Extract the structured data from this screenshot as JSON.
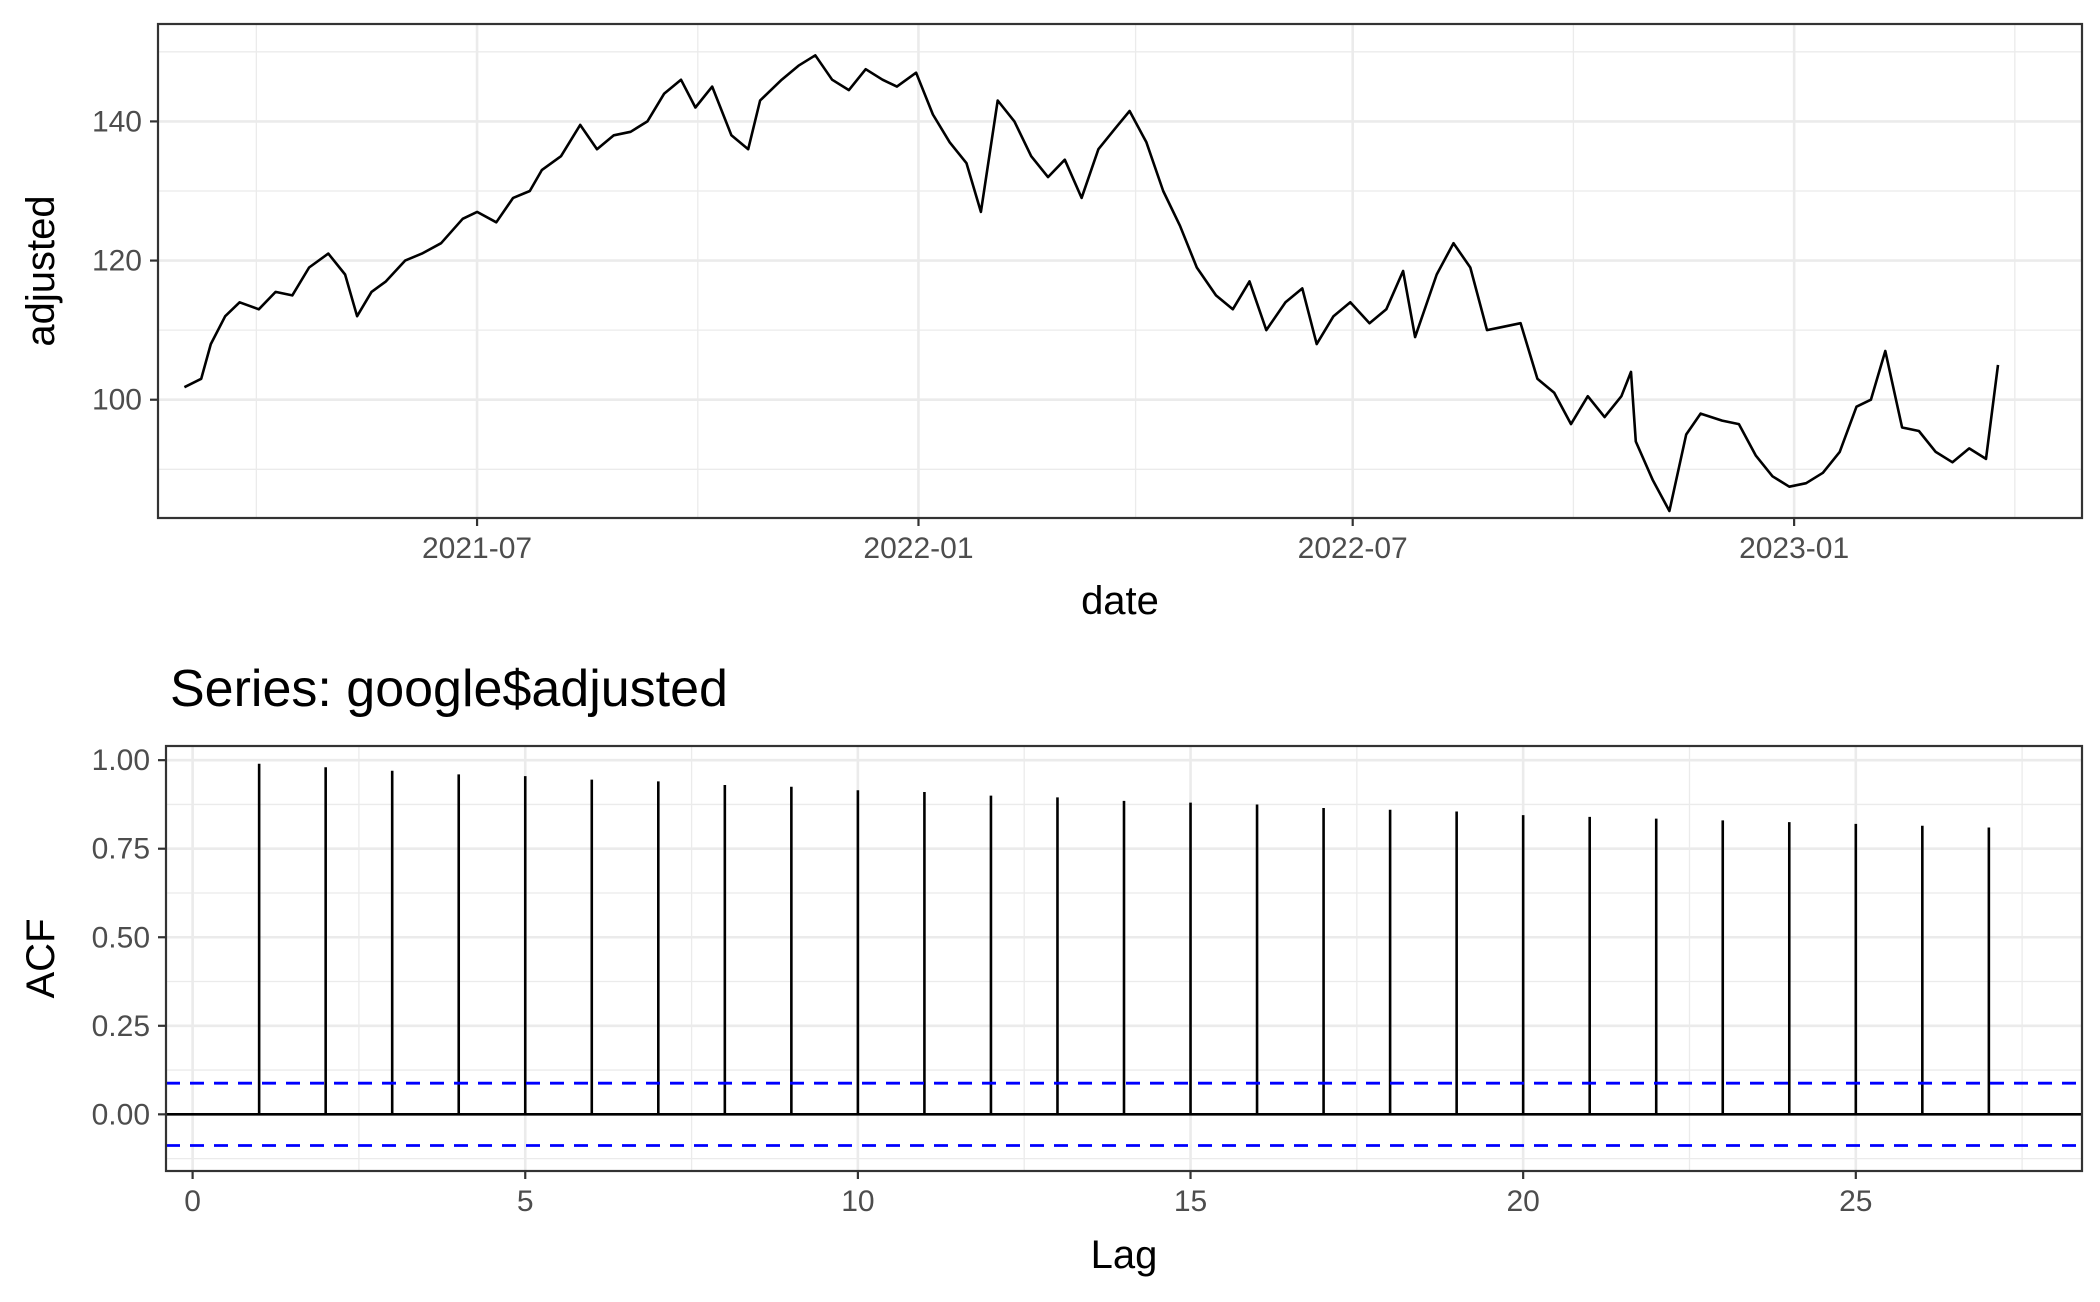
{
  "chart_data": [
    {
      "type": "line",
      "title": "",
      "xlabel": "date",
      "ylabel": "adjusted",
      "xlim": [
        "2021-02-18",
        "2023-05-01"
      ],
      "ylim": [
        83,
        154
      ],
      "x_ticks": [
        "2021-07-01",
        "2022-01-01",
        "2022-07-01",
        "2023-01-01"
      ],
      "x_tick_labels": [
        "2021-07",
        "2022-01",
        "2022-07",
        "2023-01"
      ],
      "y_ticks": [
        100,
        120,
        140
      ],
      "y_tick_labels": [
        "100",
        "120",
        "140"
      ],
      "grid": true,
      "series": [
        {
          "color": "#000000",
          "x": [
            "2021-03-01",
            "2021-03-08",
            "2021-03-12",
            "2021-03-18",
            "2021-03-24",
            "2021-04-01",
            "2021-04-08",
            "2021-04-15",
            "2021-04-22",
            "2021-04-30",
            "2021-05-07",
            "2021-05-12",
            "2021-05-18",
            "2021-05-24",
            "2021-06-01",
            "2021-06-08",
            "2021-06-16",
            "2021-06-25",
            "2021-07-01",
            "2021-07-09",
            "2021-07-16",
            "2021-07-23",
            "2021-07-28",
            "2021-08-05",
            "2021-08-13",
            "2021-08-20",
            "2021-08-27",
            "2021-09-03",
            "2021-09-10",
            "2021-09-17",
            "2021-09-24",
            "2021-09-30",
            "2021-10-07",
            "2021-10-15",
            "2021-10-22",
            "2021-10-27",
            "2021-11-05",
            "2021-11-12",
            "2021-11-19",
            "2021-11-26",
            "2021-12-03",
            "2021-12-10",
            "2021-12-17",
            "2021-12-23",
            "2021-12-31",
            "2022-01-07",
            "2022-01-14",
            "2022-01-21",
            "2022-01-27",
            "2022-02-03",
            "2022-02-10",
            "2022-02-17",
            "2022-02-24",
            "2022-03-03",
            "2022-03-10",
            "2022-03-17",
            "2022-03-24",
            "2022-03-30",
            "2022-04-06",
            "2022-04-13",
            "2022-04-20",
            "2022-04-27",
            "2022-05-05",
            "2022-05-12",
            "2022-05-19",
            "2022-05-26",
            "2022-06-03",
            "2022-06-10",
            "2022-06-16",
            "2022-06-23",
            "2022-06-30",
            "2022-07-08",
            "2022-07-15",
            "2022-07-22",
            "2022-07-27",
            "2022-08-05",
            "2022-08-12",
            "2022-08-19",
            "2022-08-26",
            "2022-09-02",
            "2022-09-09",
            "2022-09-16",
            "2022-09-23",
            "2022-09-30",
            "2022-10-07",
            "2022-10-14",
            "2022-10-21",
            "2022-10-25",
            "2022-10-27",
            "2022-11-03",
            "2022-11-10",
            "2022-11-17",
            "2022-11-23",
            "2022-12-02",
            "2022-12-09",
            "2022-12-16",
            "2022-12-23",
            "2022-12-30",
            "2023-01-06",
            "2023-01-13",
            "2023-01-20",
            "2023-01-27",
            "2023-02-02",
            "2023-02-08",
            "2023-02-15",
            "2023-02-22",
            "2023-03-01",
            "2023-03-08",
            "2023-03-15",
            "2023-03-22",
            "2023-03-27"
          ],
          "y": [
            101.8,
            103.0,
            108.0,
            112.0,
            114.0,
            113.0,
            115.5,
            115.0,
            119.0,
            121.0,
            118.0,
            112.0,
            115.5,
            117.0,
            120.0,
            121.0,
            122.5,
            126.0,
            127.0,
            125.5,
            129.0,
            130.0,
            133.0,
            135.0,
            139.5,
            136.0,
            138.0,
            138.5,
            140.0,
            144.0,
            146.0,
            142.0,
            145.0,
            138.0,
            136.0,
            143.0,
            146.0,
            148.0,
            149.5,
            146.0,
            144.5,
            147.5,
            146.0,
            145.0,
            147.0,
            141.0,
            137.0,
            134.0,
            127.0,
            143.0,
            140.0,
            135.0,
            132.0,
            134.5,
            129.0,
            136.0,
            139.0,
            141.5,
            137.0,
            130.0,
            125.0,
            119.0,
            115.0,
            113.0,
            117.0,
            110.0,
            114.0,
            116.0,
            108.0,
            112.0,
            114.0,
            111.0,
            113.0,
            118.5,
            109.0,
            118.0,
            122.5,
            119.0,
            110.0,
            110.5,
            111.0,
            103.0,
            101.0,
            96.5,
            100.5,
            97.5,
            100.5,
            104.0,
            94.0,
            88.5,
            84.0,
            95.0,
            98.0,
            97.0,
            96.5,
            92.0,
            89.0,
            87.5,
            88.0,
            89.5,
            92.5,
            99.0,
            100.0,
            107.0,
            96.0,
            95.5,
            92.5,
            91.0,
            93.0,
            91.5,
            105.0
          ]
        }
      ]
    },
    {
      "type": "bar",
      "title": "Series: google$adjusted",
      "xlabel": "Lag",
      "ylabel": "ACF",
      "xlim": [
        -0.4,
        28.4
      ],
      "ylim": [
        -0.16,
        1.04
      ],
      "x_ticks": [
        0,
        5,
        10,
        15,
        20,
        25
      ],
      "x_tick_labels": [
        "0",
        "5",
        "10",
        "15",
        "20",
        "25"
      ],
      "y_ticks": [
        0.0,
        0.25,
        0.5,
        0.75,
        1.0
      ],
      "y_tick_labels": [
        "0.00",
        "0.25",
        "0.50",
        "0.75",
        "1.00"
      ],
      "grid": true,
      "categories": [
        1,
        2,
        3,
        4,
        5,
        6,
        7,
        8,
        9,
        10,
        11,
        12,
        13,
        14,
        15,
        16,
        17,
        18,
        19,
        20,
        21,
        22,
        23,
        24,
        25,
        26,
        27
      ],
      "values": [
        0.99,
        0.98,
        0.97,
        0.96,
        0.955,
        0.945,
        0.94,
        0.93,
        0.925,
        0.915,
        0.91,
        0.9,
        0.895,
        0.885,
        0.88,
        0.875,
        0.865,
        0.86,
        0.855,
        0.845,
        0.84,
        0.835,
        0.83,
        0.825,
        0.82,
        0.815,
        0.81
      ],
      "bar_color": "#000000",
      "zero_line": 0.0,
      "confidence_band": 0.088,
      "confidence_color": "#0000ff"
    }
  ]
}
